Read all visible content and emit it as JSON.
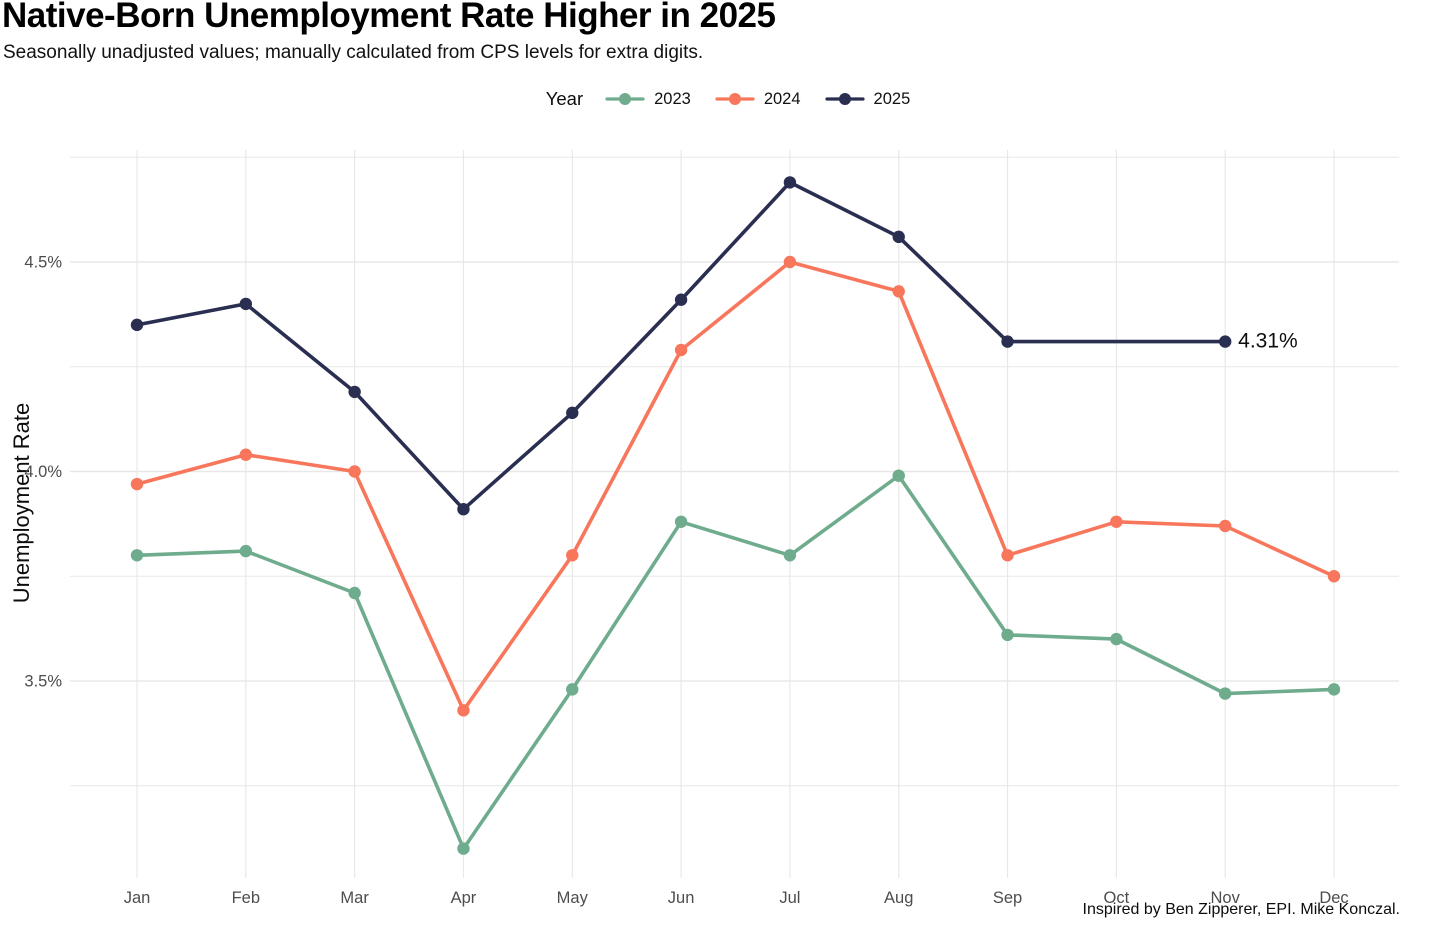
{
  "title": "Native-Born Unemployment Rate Higher in 2025",
  "subtitle": "Seasonally unadjusted values; manually calculated from CPS levels for extra digits.",
  "caption": "Inspired by Ben Zipperer, EPI. Mike Konczal.",
  "legend": {
    "title": "Year",
    "entries": [
      {
        "label": "2023",
        "color": "#6FAC8D"
      },
      {
        "label": "2024",
        "color": "#F8775C"
      },
      {
        "label": "2025",
        "color": "#2A2F52"
      }
    ]
  },
  "annotation": {
    "text": "4.31%",
    "series": "2025",
    "month": "Nov"
  },
  "colors": {
    "green_2023": "#6FAC8D",
    "orange_2024": "#F8775C",
    "navy_2025": "#2A2F52",
    "gridline": "#E8E8E8",
    "tick_label": "#4D4D4D",
    "background": "#FFFFFF"
  },
  "chart_data": {
    "type": "line",
    "x": [
      "Jan",
      "Feb",
      "Mar",
      "Apr",
      "May",
      "Jun",
      "Jul",
      "Aug",
      "Sep",
      "Oct",
      "Nov",
      "Dec"
    ],
    "xlabel": "",
    "ylabel": "Unemployment Rate",
    "yticks": [
      {
        "value": 4.5,
        "label": "4.5%"
      },
      {
        "value": 4.0,
        "label": "4.0%"
      },
      {
        "value": 3.5,
        "label": "3.5%"
      }
    ],
    "grid_values": [
      3.25,
      3.5,
      3.75,
      4.0,
      4.25,
      4.5,
      4.75
    ],
    "ylim": [
      3.02,
      4.77
    ],
    "grid": true,
    "legend_position": "top-center",
    "series": [
      {
        "name": "2023",
        "color": "#6FAC8D",
        "values": [
          3.8,
          3.81,
          3.71,
          3.1,
          3.48,
          3.88,
          3.8,
          3.99,
          3.61,
          3.6,
          3.47,
          3.48
        ]
      },
      {
        "name": "2024",
        "color": "#F8775C",
        "values": [
          3.97,
          4.04,
          4.0,
          3.43,
          3.8,
          4.29,
          4.5,
          4.43,
          3.8,
          3.88,
          3.87,
          3.75
        ]
      },
      {
        "name": "2025",
        "color": "#2A2F52",
        "values": [
          4.35,
          4.4,
          4.19,
          3.91,
          4.14,
          4.41,
          4.69,
          4.56,
          4.31,
          null,
          4.31,
          null
        ]
      }
    ]
  }
}
